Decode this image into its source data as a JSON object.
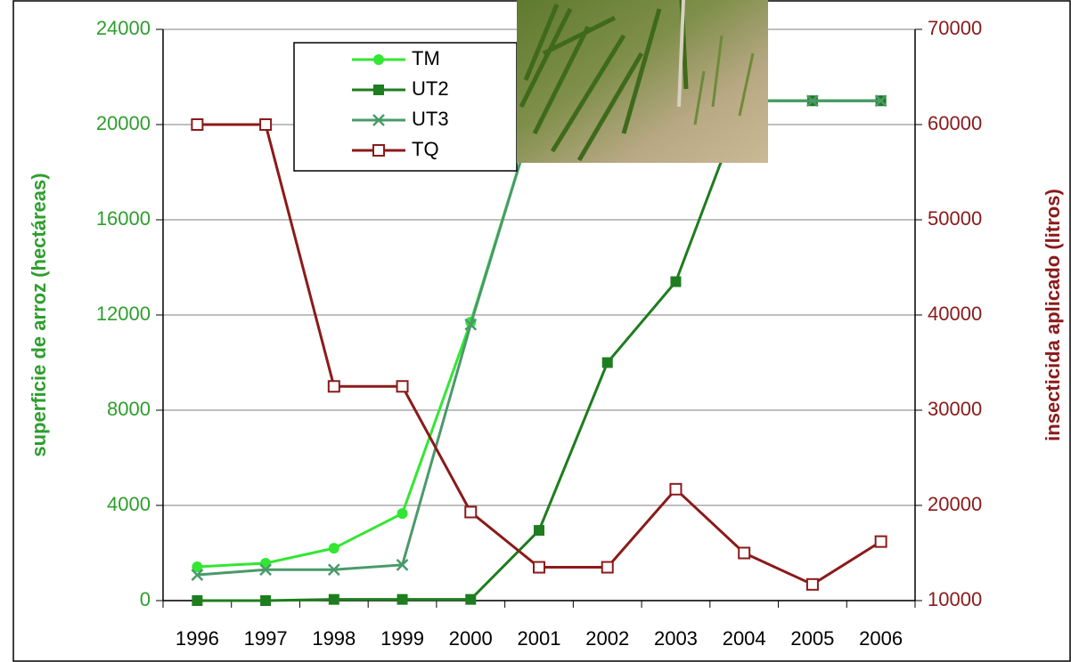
{
  "chart_data": {
    "type": "line",
    "categories": [
      "1996",
      "1997",
      "1998",
      "1999",
      "2000",
      "2001",
      "2002",
      "2003",
      "2004",
      "2005",
      "2006"
    ],
    "series": [
      {
        "name": "TM",
        "color": "#33e633",
        "marker": "circle",
        "values": [
          1420,
          1570,
          2200,
          3660,
          11700,
          21000,
          21000,
          21000,
          21000,
          21000,
          21000
        ]
      },
      {
        "name": "UT2",
        "color": "#1e7d1e",
        "marker": "square",
        "values": [
          0,
          0,
          50,
          50,
          50,
          2950,
          10000,
          13400,
          21000,
          21000,
          21000
        ]
      },
      {
        "name": "UT3",
        "color": "#4a9a6a",
        "marker": "cross",
        "values": [
          1080,
          1300,
          1300,
          1500,
          11600,
          21000,
          21000,
          21000,
          21000,
          21000,
          21000
        ]
      },
      {
        "name": "TQ",
        "color": "#8b1a1a",
        "marker": "open-square",
        "axis": "y2",
        "values": [
          60000,
          60000,
          32500,
          32500,
          19300,
          13500,
          13500,
          21700,
          15000,
          11700,
          16200
        ]
      }
    ],
    "ylim": [
      0,
      24000
    ],
    "yticks": [
      0,
      4000,
      8000,
      12000,
      16000,
      20000,
      24000
    ],
    "y2lim": [
      10000,
      70000
    ],
    "y2ticks": [
      10000,
      20000,
      30000,
      40000,
      50000,
      60000,
      70000
    ],
    "y_label": "superficie de arroz (hectáreas)",
    "y2_label": "insecticida aplicado (litros)",
    "y_label_color": "#2e9e2e",
    "y2_label_color": "#8b1a1a",
    "grid": true
  }
}
